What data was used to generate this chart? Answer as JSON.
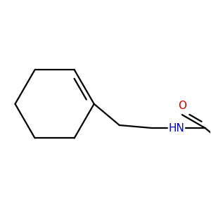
{
  "bg_color": "#ffffff",
  "bond_color": "#000000",
  "N_color": "#0000cc",
  "O_color": "#cc0000",
  "line_width": 1.6,
  "font_size_label": 11,
  "fig_width": 3.0,
  "fig_height": 3.0,
  "dpi": 100
}
